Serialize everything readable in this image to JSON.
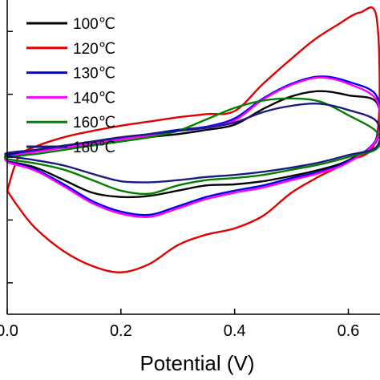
{
  "chart_data": {
    "type": "line",
    "xlabel": "Potential (V)",
    "ylabel": "",
    "xlim": [
      0.0,
      0.65
    ],
    "ylim": [
      -0.75,
      0.75
    ],
    "x_ticks": [
      {
        "value": 0.0,
        "label": "0.0"
      },
      {
        "value": 0.2,
        "label": "0.2"
      },
      {
        "value": 0.4,
        "label": "0.4"
      },
      {
        "value": 0.6,
        "label": "0.6"
      }
    ],
    "y_ticks": [
      0.6,
      0.3,
      0.0,
      -0.3,
      -0.6
    ],
    "grid": false,
    "legend_position": "top-left",
    "series": [
      {
        "name": "100℃",
        "color": "#000000",
        "points": [
          [
            0.0,
            -0.02
          ],
          [
            0.05,
            -0.05
          ],
          [
            0.1,
            -0.11
          ],
          [
            0.15,
            -0.17
          ],
          [
            0.2,
            -0.19
          ],
          [
            0.25,
            -0.185
          ],
          [
            0.3,
            -0.16
          ],
          [
            0.35,
            -0.135
          ],
          [
            0.4,
            -0.13
          ],
          [
            0.45,
            -0.115
          ],
          [
            0.5,
            -0.09
          ],
          [
            0.55,
            -0.06
          ],
          [
            0.6,
            -0.015
          ],
          [
            0.65,
            0.08
          ],
          [
            0.65,
            0.26
          ],
          [
            0.6,
            0.295
          ],
          [
            0.55,
            0.315
          ],
          [
            0.5,
            0.29
          ],
          [
            0.45,
            0.23
          ],
          [
            0.4,
            0.155
          ],
          [
            0.35,
            0.13
          ],
          [
            0.3,
            0.11
          ],
          [
            0.25,
            0.095
          ],
          [
            0.2,
            0.075
          ],
          [
            0.15,
            0.06
          ],
          [
            0.1,
            0.045
          ],
          [
            0.05,
            0.03
          ],
          [
            0.0,
            0.01
          ],
          [
            0.0,
            -0.02
          ]
        ]
      },
      {
        "name": "120℃",
        "color": "#e00000",
        "points": [
          [
            0.0,
            -0.16
          ],
          [
            0.02,
            -0.24
          ],
          [
            0.05,
            -0.34
          ],
          [
            0.1,
            -0.45
          ],
          [
            0.15,
            -0.52
          ],
          [
            0.2,
            -0.55
          ],
          [
            0.25,
            -0.51
          ],
          [
            0.3,
            -0.42
          ],
          [
            0.35,
            -0.37
          ],
          [
            0.4,
            -0.34
          ],
          [
            0.45,
            -0.28
          ],
          [
            0.5,
            -0.17
          ],
          [
            0.55,
            -0.09
          ],
          [
            0.6,
            -0.02
          ],
          [
            0.65,
            0.1
          ],
          [
            0.65,
            0.66
          ],
          [
            0.62,
            0.69
          ],
          [
            0.58,
            0.63
          ],
          [
            0.54,
            0.56
          ],
          [
            0.5,
            0.47
          ],
          [
            0.45,
            0.35
          ],
          [
            0.4,
            0.22
          ],
          [
            0.35,
            0.205
          ],
          [
            0.3,
            0.19
          ],
          [
            0.25,
            0.17
          ],
          [
            0.2,
            0.15
          ],
          [
            0.15,
            0.125
          ],
          [
            0.1,
            0.095
          ],
          [
            0.05,
            0.05
          ],
          [
            0.02,
            0.0
          ],
          [
            0.0,
            -0.16
          ]
        ]
      },
      {
        "name": "130℃",
        "color": "#0000ee",
        "points": [
          [
            0.0,
            -0.02
          ],
          [
            0.05,
            -0.06
          ],
          [
            0.1,
            -0.13
          ],
          [
            0.15,
            -0.21
          ],
          [
            0.2,
            -0.26
          ],
          [
            0.25,
            -0.275
          ],
          [
            0.3,
            -0.235
          ],
          [
            0.35,
            -0.19
          ],
          [
            0.4,
            -0.16
          ],
          [
            0.45,
            -0.135
          ],
          [
            0.5,
            -0.1
          ],
          [
            0.55,
            -0.07
          ],
          [
            0.6,
            -0.02
          ],
          [
            0.65,
            0.09
          ],
          [
            0.65,
            0.29
          ],
          [
            0.6,
            0.36
          ],
          [
            0.55,
            0.385
          ],
          [
            0.5,
            0.35
          ],
          [
            0.45,
            0.28
          ],
          [
            0.4,
            0.185
          ],
          [
            0.35,
            0.145
          ],
          [
            0.3,
            0.13
          ],
          [
            0.25,
            0.11
          ],
          [
            0.2,
            0.09
          ],
          [
            0.15,
            0.07
          ],
          [
            0.1,
            0.05
          ],
          [
            0.05,
            0.03
          ],
          [
            0.0,
            0.005
          ],
          [
            0.0,
            -0.02
          ]
        ]
      },
      {
        "name": "140℃",
        "color": "#ff00ff",
        "points": [
          [
            0.0,
            -0.025
          ],
          [
            0.05,
            -0.065
          ],
          [
            0.1,
            -0.14
          ],
          [
            0.15,
            -0.22
          ],
          [
            0.2,
            -0.27
          ],
          [
            0.25,
            -0.285
          ],
          [
            0.3,
            -0.245
          ],
          [
            0.35,
            -0.2
          ],
          [
            0.4,
            -0.17
          ],
          [
            0.45,
            -0.145
          ],
          [
            0.5,
            -0.11
          ],
          [
            0.55,
            -0.075
          ],
          [
            0.6,
            -0.025
          ],
          [
            0.65,
            0.085
          ],
          [
            0.65,
            0.27
          ],
          [
            0.6,
            0.35
          ],
          [
            0.55,
            0.38
          ],
          [
            0.5,
            0.345
          ],
          [
            0.45,
            0.275
          ],
          [
            0.4,
            0.175
          ],
          [
            0.35,
            0.14
          ],
          [
            0.3,
            0.125
          ],
          [
            0.25,
            0.105
          ],
          [
            0.2,
            0.085
          ],
          [
            0.15,
            0.065
          ],
          [
            0.1,
            0.045
          ],
          [
            0.05,
            0.025
          ],
          [
            0.0,
            0.0
          ],
          [
            0.0,
            -0.025
          ]
        ]
      },
      {
        "name": "160℃",
        "color": "#008000",
        "points": [
          [
            0.0,
            -0.01
          ],
          [
            0.05,
            -0.03
          ],
          [
            0.1,
            -0.06
          ],
          [
            0.15,
            -0.11
          ],
          [
            0.2,
            -0.16
          ],
          [
            0.25,
            -0.175
          ],
          [
            0.3,
            -0.135
          ],
          [
            0.35,
            -0.11
          ],
          [
            0.4,
            -0.1
          ],
          [
            0.45,
            -0.085
          ],
          [
            0.5,
            -0.06
          ],
          [
            0.55,
            -0.035
          ],
          [
            0.6,
            0.0
          ],
          [
            0.65,
            0.04
          ],
          [
            0.65,
            0.12
          ],
          [
            0.6,
            0.2
          ],
          [
            0.55,
            0.265
          ],
          [
            0.5,
            0.28
          ],
          [
            0.45,
            0.27
          ],
          [
            0.4,
            0.235
          ],
          [
            0.35,
            0.18
          ],
          [
            0.3,
            0.125
          ],
          [
            0.25,
            0.095
          ],
          [
            0.2,
            0.075
          ],
          [
            0.15,
            0.055
          ],
          [
            0.1,
            0.035
          ],
          [
            0.05,
            0.015
          ],
          [
            0.0,
            0.0
          ],
          [
            0.0,
            -0.01
          ]
        ]
      },
      {
        "name": "180℃",
        "color": "#1a1a80",
        "points": [
          [
            0.0,
            0.005
          ],
          [
            0.05,
            -0.015
          ],
          [
            0.1,
            -0.04
          ],
          [
            0.15,
            -0.08
          ],
          [
            0.2,
            -0.115
          ],
          [
            0.25,
            -0.12
          ],
          [
            0.3,
            -0.11
          ],
          [
            0.35,
            -0.095
          ],
          [
            0.4,
            -0.085
          ],
          [
            0.45,
            -0.07
          ],
          [
            0.5,
            -0.05
          ],
          [
            0.55,
            -0.025
          ],
          [
            0.6,
            0.01
          ],
          [
            0.65,
            0.05
          ],
          [
            0.65,
            0.17
          ],
          [
            0.6,
            0.225
          ],
          [
            0.55,
            0.255
          ],
          [
            0.5,
            0.245
          ],
          [
            0.45,
            0.215
          ],
          [
            0.4,
            0.165
          ],
          [
            0.35,
            0.14
          ],
          [
            0.3,
            0.125
          ],
          [
            0.25,
            0.11
          ],
          [
            0.2,
            0.095
          ],
          [
            0.15,
            0.075
          ],
          [
            0.1,
            0.055
          ],
          [
            0.05,
            0.035
          ],
          [
            0.0,
            0.02
          ],
          [
            0.0,
            0.005
          ]
        ]
      }
    ]
  }
}
